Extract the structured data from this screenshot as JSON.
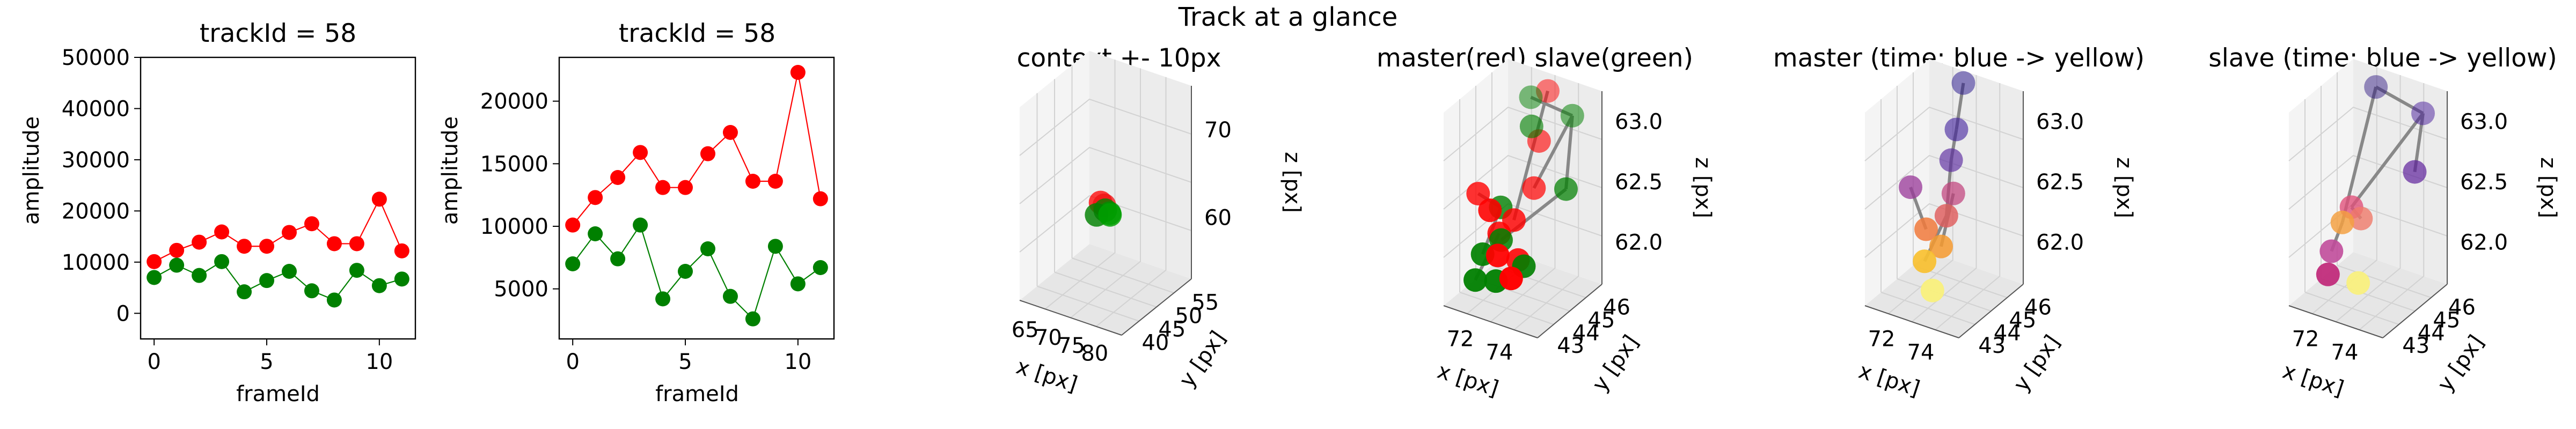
{
  "suptitle": "Track at a glance",
  "chart_data": [
    {
      "type": "line",
      "title": "trackId = 58",
      "xlabel": "frameId",
      "ylabel": "amplitude",
      "ylim": [
        -5000,
        50000
      ],
      "yticks": [
        0,
        10000,
        20000,
        30000,
        40000,
        50000
      ],
      "xlim": [
        -0.6,
        11.6
      ],
      "xticks": [
        0,
        5,
        10
      ],
      "x": [
        0,
        1,
        2,
        3,
        4,
        5,
        6,
        7,
        8,
        9,
        10,
        11
      ],
      "series": [
        {
          "color": "#ff0000",
          "values": [
            10100,
            12300,
            13900,
            15900,
            13100,
            13100,
            15800,
            17500,
            13600,
            13600,
            22300,
            12200
          ]
        },
        {
          "color": "#008000",
          "values": [
            7000,
            9400,
            7400,
            10100,
            4200,
            6400,
            8200,
            4400,
            2600,
            8400,
            5400,
            6700
          ]
        }
      ]
    },
    {
      "type": "line",
      "title": "trackId = 58",
      "xlabel": "frameId",
      "ylabel": "amplitude",
      "ylim": [
        1000,
        23500
      ],
      "yticks": [
        5000,
        10000,
        15000,
        20000
      ],
      "xlim": [
        -0.6,
        11.6
      ],
      "xticks": [
        0,
        5,
        10
      ],
      "x": [
        0,
        1,
        2,
        3,
        4,
        5,
        6,
        7,
        8,
        9,
        10,
        11
      ],
      "series": [
        {
          "color": "#ff0000",
          "values": [
            10100,
            12300,
            13900,
            15900,
            13100,
            13100,
            15800,
            17500,
            13600,
            13600,
            22300,
            12200
          ]
        },
        {
          "color": "#008000",
          "values": [
            7000,
            9400,
            7400,
            10100,
            4200,
            6400,
            8200,
            4400,
            2600,
            8400,
            5400,
            6700
          ]
        }
      ]
    },
    {
      "type": "scatter",
      "title": "context +- 10px",
      "xlabel": "x [px]",
      "ylabel": "y [px]",
      "zlabel": "z [px]",
      "xlim": [
        63,
        82
      ],
      "ylim": [
        37,
        58
      ],
      "zlim": [
        50,
        75
      ],
      "xticks": [
        "65",
        "70",
        "75",
        "80"
      ],
      "yticks": [
        "40",
        "45",
        "50",
        "55"
      ],
      "zticks": [
        "60",
        "70"
      ],
      "points": [
        {
          "x": 72.5,
          "y": 46,
          "z": 61.8,
          "color": "#ff0000"
        },
        {
          "x": 73.2,
          "y": 46,
          "z": 61.6,
          "color": "#ee1111"
        },
        {
          "x": 74.0,
          "y": 45,
          "z": 61.5,
          "color": "#008000"
        },
        {
          "x": 74.8,
          "y": 45,
          "z": 61.3,
          "color": "#009000"
        },
        {
          "x": 73.0,
          "y": 44,
          "z": 61.0,
          "color": "#008000"
        },
        {
          "x": 75.5,
          "y": 44,
          "z": 61.6,
          "color": "#00a000"
        }
      ]
    },
    {
      "type": "scatter",
      "title": "master(red) slave(green)",
      "xlabel": "x [px]",
      "ylabel": "y [px]",
      "zlabel": "z [px]",
      "xlim": [
        70.5,
        75.5
      ],
      "ylim": [
        42.7,
        46.3
      ],
      "zlim": [
        61.6,
        63.2
      ],
      "xticks": [
        "72",
        "74"
      ],
      "yticks": [
        "43",
        "44",
        "45",
        "46"
      ],
      "zticks": [
        "62.0",
        "62.5",
        "63.0"
      ],
      "master_color": "#ff0000",
      "slave_color": "#008000",
      "points": [
        {
          "x": 72.9,
          "y": 46.0,
          "z": 63.1,
          "role": "master"
        },
        {
          "x": 73.2,
          "y": 45.2,
          "z": 62.8,
          "role": "master"
        },
        {
          "x": 73.5,
          "y": 44.6,
          "z": 62.5,
          "role": "master"
        },
        {
          "x": 71.1,
          "y": 44.0,
          "z": 62.4,
          "role": "master"
        },
        {
          "x": 73.1,
          "y": 43.9,
          "z": 62.3,
          "role": "master"
        },
        {
          "x": 72.6,
          "y": 43.6,
          "z": 62.2,
          "role": "master"
        },
        {
          "x": 73.7,
          "y": 43.5,
          "z": 62.05,
          "role": "master"
        },
        {
          "x": 73.0,
          "y": 43.1,
          "z": 62.1,
          "role": "master"
        },
        {
          "x": 72.3,
          "y": 43.4,
          "z": 62.4,
          "role": "master"
        },
        {
          "x": 74.0,
          "y": 42.8,
          "z": 62.0,
          "role": "master"
        },
        {
          "x": 72.0,
          "y": 46.0,
          "z": 63.0,
          "role": "slave"
        },
        {
          "x": 74.4,
          "y": 45.8,
          "z": 63.0,
          "role": "slave"
        },
        {
          "x": 72.8,
          "y": 45.2,
          "z": 62.9,
          "role": "slave"
        },
        {
          "x": 75.3,
          "y": 44.5,
          "z": 62.6,
          "role": "slave"
        },
        {
          "x": 72.3,
          "y": 44.0,
          "z": 62.35,
          "role": "slave"
        },
        {
          "x": 72.7,
          "y": 43.6,
          "z": 62.15,
          "role": "slave"
        },
        {
          "x": 72.1,
          "y": 43.2,
          "z": 62.05,
          "role": "slave"
        },
        {
          "x": 71.9,
          "y": 43.0,
          "z": 61.85,
          "role": "slave"
        },
        {
          "x": 74.2,
          "y": 43.3,
          "z": 62.05,
          "role": "slave"
        },
        {
          "x": 73.0,
          "y": 43.0,
          "z": 61.9,
          "role": "slave"
        }
      ],
      "edges": [
        [
          0,
          4
        ],
        [
          10,
          11
        ],
        [
          11,
          13
        ],
        [
          13,
          15
        ],
        [
          2,
          11
        ],
        [
          3,
          14
        ],
        [
          14,
          16
        ],
        [
          5,
          17
        ]
      ]
    },
    {
      "type": "scatter",
      "title": "master (time: blue -> yellow)",
      "xlabel": "x [px]",
      "ylabel": "y [px]",
      "zlabel": "z [px]",
      "xlim": [
        70.5,
        75.5
      ],
      "ylim": [
        42.7,
        46.3
      ],
      "zlim": [
        61.6,
        63.2
      ],
      "xticks": [
        "72",
        "74"
      ],
      "yticks": [
        "43",
        "44",
        "45",
        "46"
      ],
      "zticks": [
        "62.0",
        "62.5",
        "63.0"
      ],
      "points": [
        {
          "x": 72.6,
          "y": 46.0,
          "z": 63.15,
          "color": "#1f0d8a"
        },
        {
          "x": 72.8,
          "y": 45.4,
          "z": 62.85,
          "color": "#3b1a9a"
        },
        {
          "x": 72.9,
          "y": 45.0,
          "z": 62.65,
          "color": "#5a2aa0"
        },
        {
          "x": 71.5,
          "y": 44.2,
          "z": 62.45,
          "color": "#9a3a9a"
        },
        {
          "x": 73.4,
          "y": 44.6,
          "z": 62.45,
          "color": "#c0407a"
        },
        {
          "x": 73.6,
          "y": 44.0,
          "z": 62.35,
          "color": "#e05a5a"
        },
        {
          "x": 72.9,
          "y": 43.6,
          "z": 62.25,
          "color": "#f07a3c"
        },
        {
          "x": 73.7,
          "y": 43.6,
          "z": 62.15,
          "color": "#f59a30"
        },
        {
          "x": 73.2,
          "y": 43.2,
          "z": 62.05,
          "color": "#f8c030"
        },
        {
          "x": 74.0,
          "y": 42.8,
          "z": 61.9,
          "color": "#f8f080"
        }
      ],
      "edges": [
        [
          0,
          1
        ],
        [
          1,
          2
        ],
        [
          2,
          5
        ],
        [
          3,
          6
        ],
        [
          5,
          8
        ],
        [
          4,
          7
        ]
      ]
    },
    {
      "type": "scatter",
      "title": "slave (time: blue -> yellow)",
      "xlabel": "x [px]",
      "ylabel": "y [px]",
      "zlabel": "z [px]",
      "xlim": [
        70.5,
        75.5
      ],
      "ylim": [
        42.7,
        46.3
      ],
      "zlim": [
        61.6,
        63.2
      ],
      "xticks": [
        "72",
        "74"
      ],
      "yticks": [
        "43",
        "44",
        "45",
        "46"
      ],
      "zticks": [
        "62.0",
        "62.5",
        "63.0"
      ],
      "points": [
        {
          "x": 71.8,
          "y": 46.2,
          "z": 63.05,
          "color": "#2a1480"
        },
        {
          "x": 74.5,
          "y": 46.0,
          "z": 63.0,
          "color": "#451a9a"
        },
        {
          "x": 75.2,
          "y": 44.8,
          "z": 62.7,
          "color": "#5a1a9a"
        },
        {
          "x": 72.5,
          "y": 44.1,
          "z": 62.35,
          "color": "#e0507a"
        },
        {
          "x": 73.1,
          "y": 44.0,
          "z": 62.3,
          "color": "#f07a6a"
        },
        {
          "x": 72.3,
          "y": 43.8,
          "z": 62.25,
          "color": "#f4a040"
        },
        {
          "x": 72.1,
          "y": 43.4,
          "z": 62.05,
          "color": "#c04a9a"
        },
        {
          "x": 72.2,
          "y": 43.1,
          "z": 61.9,
          "color": "#c02a7a"
        },
        {
          "x": 74.0,
          "y": 42.9,
          "z": 61.95,
          "color": "#f8f080"
        }
      ],
      "edges": [
        [
          0,
          1
        ],
        [
          1,
          2
        ],
        [
          1,
          3
        ],
        [
          0,
          5
        ],
        [
          3,
          4
        ],
        [
          5,
          6
        ]
      ]
    }
  ]
}
